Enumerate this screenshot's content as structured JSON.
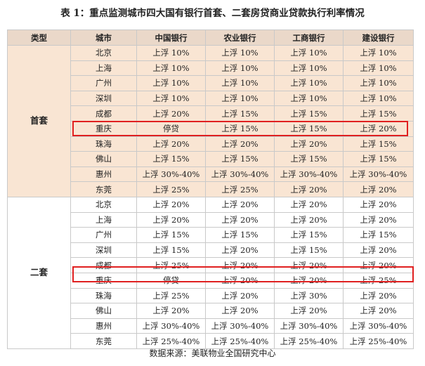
{
  "title": "表 1：重点监测城市四大国有银行首套、二套房贷商业贷款执行利率情况",
  "headers": [
    "类型",
    "城市",
    "中国银行",
    "农业银行",
    "工商银行",
    "建设银行"
  ],
  "sections": [
    {
      "type": "首套",
      "rows": [
        {
          "city": "北京",
          "boc": "上浮 10%",
          "abc": "上浮 10%",
          "icbc": "上浮 10%",
          "ccb": "上浮 10%"
        },
        {
          "city": "上海",
          "boc": "上浮 10%",
          "abc": "上浮 10%",
          "icbc": "上浮 10%",
          "ccb": "上浮 10%"
        },
        {
          "city": "广州",
          "boc": "上浮 10%",
          "abc": "上浮 10%",
          "icbc": "上浮 10%",
          "ccb": "上浮 10%"
        },
        {
          "city": "深圳",
          "boc": "上浮 10%",
          "abc": "上浮 10%",
          "icbc": "上浮 10%",
          "ccb": "上浮 10%"
        },
        {
          "city": "成都",
          "boc": "上浮 20%",
          "abc": "上浮 15%",
          "icbc": "上浮 15%",
          "ccb": "上浮 15%"
        },
        {
          "city": "重庆",
          "boc": "停贷",
          "abc": "上浮 15%",
          "icbc": "上浮 15%",
          "ccb": "上浮 20%"
        },
        {
          "city": "珠海",
          "boc": "上浮 20%",
          "abc": "上浮 20%",
          "icbc": "上浮 20%",
          "ccb": "上浮 15%"
        },
        {
          "city": "佛山",
          "boc": "上浮 15%",
          "abc": "上浮 15%",
          "icbc": "上浮 15%",
          "ccb": "上浮 15%"
        },
        {
          "city": "惠州",
          "boc": "上浮 30%-40%",
          "abc": "上浮 30%-40%",
          "icbc": "上浮 30%-40%",
          "ccb": "上浮 30%-40%"
        },
        {
          "city": "东莞",
          "boc": "上浮 25%",
          "abc": "上浮 25%",
          "icbc": "上浮 20%",
          "ccb": "上浮 20%"
        }
      ]
    },
    {
      "type": "二套",
      "rows": [
        {
          "city": "北京",
          "boc": "上浮 20%",
          "abc": "上浮 20%",
          "icbc": "上浮 20%",
          "ccb": "上浮 20%"
        },
        {
          "city": "上海",
          "boc": "上浮 20%",
          "abc": "上浮 20%",
          "icbc": "上浮 20%",
          "ccb": "上浮 20%"
        },
        {
          "city": "广州",
          "boc": "上浮 15%",
          "abc": "上浮 15%",
          "icbc": "上浮 15%",
          "ccb": "上浮 15%"
        },
        {
          "city": "深圳",
          "boc": "上浮 15%",
          "abc": "上浮 20%",
          "icbc": "上浮 15%",
          "ccb": "上浮 20%"
        },
        {
          "city": "成都",
          "boc": "上浮 25%",
          "abc": "上浮 20%",
          "icbc": "上浮 20%",
          "ccb": "上浮 20%"
        },
        {
          "city": "重庆",
          "boc": "停贷",
          "abc": "上浮 20%",
          "icbc": "上浮 20%",
          "ccb": "上浮 25%"
        },
        {
          "city": "珠海",
          "boc": "上浮 25%",
          "abc": "上浮 20%",
          "icbc": "上浮 30%",
          "ccb": "上浮 20%"
        },
        {
          "city": "佛山",
          "boc": "上浮 20%",
          "abc": "上浮 20%",
          "icbc": "上浮 20%",
          "ccb": "上浮 20%"
        },
        {
          "city": "惠州",
          "boc": "上浮 30%-40%",
          "abc": "上浮 30%-40%",
          "icbc": "上浮 30%-40%",
          "ccb": "上浮 30%-40%"
        },
        {
          "city": "东莞",
          "boc": "上浮 25%-40%",
          "abc": "上浮 25%-40%",
          "icbc": "上浮 25%-40%",
          "ccb": "上浮 25%-40%"
        }
      ]
    }
  ],
  "highlight_color": "#e02020",
  "section_colors": [
    "#f9e5d3",
    "#ffffff"
  ],
  "source": "数据来源：美联物业全国研究中心"
}
